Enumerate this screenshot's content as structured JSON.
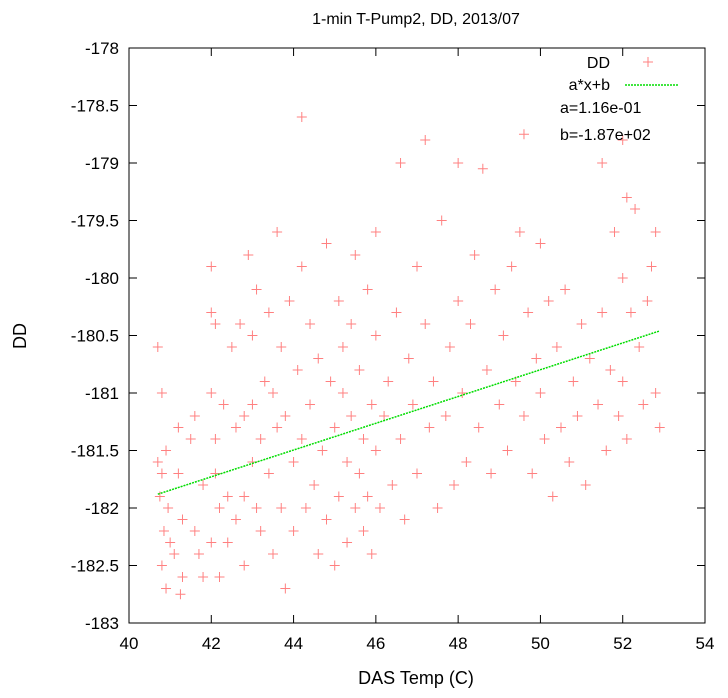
{
  "chart_data": {
    "type": "scatter",
    "title": "1-min T-Pump2, DD, 2013/07",
    "xlabel": "DAS Temp (C)",
    "ylabel": "DD",
    "xlim": [
      40,
      54
    ],
    "ylim": [
      -183,
      -178
    ],
    "xticks": [
      40,
      42,
      44,
      46,
      48,
      50,
      52,
      54
    ],
    "yticks": [
      -178,
      -178.5,
      -179,
      -179.5,
      -180,
      -180.5,
      -181,
      -181.5,
      -182,
      -182.5,
      -183
    ],
    "grid": false,
    "legend_position": "top-right",
    "series": [
      {
        "name": "DD",
        "kind": "points",
        "marker": "plus",
        "color": "#ff8080",
        "points": [
          [
            40.7,
            -180.6
          ],
          [
            40.8,
            -181.0
          ],
          [
            40.7,
            -181.6
          ],
          [
            40.8,
            -181.7
          ],
          [
            40.9,
            -181.5
          ],
          [
            40.75,
            -181.9
          ],
          [
            40.85,
            -182.2
          ],
          [
            40.8,
            -182.5
          ],
          [
            40.9,
            -182.7
          ],
          [
            41.0,
            -182.3
          ],
          [
            40.95,
            -182.0
          ],
          [
            41.1,
            -182.4
          ],
          [
            41.2,
            -181.3
          ],
          [
            41.2,
            -181.7
          ],
          [
            41.3,
            -182.1
          ],
          [
            41.3,
            -182.6
          ],
          [
            41.25,
            -182.75
          ],
          [
            41.5,
            -181.4
          ],
          [
            41.6,
            -181.2
          ],
          [
            41.6,
            -182.2
          ],
          [
            41.7,
            -182.4
          ],
          [
            41.8,
            -181.8
          ],
          [
            41.8,
            -182.6
          ],
          [
            42.0,
            -179.9
          ],
          [
            42.0,
            -180.3
          ],
          [
            42.1,
            -180.4
          ],
          [
            42.0,
            -181.0
          ],
          [
            42.1,
            -181.4
          ],
          [
            42.1,
            -181.7
          ],
          [
            42.0,
            -182.3
          ],
          [
            42.2,
            -182.0
          ],
          [
            42.2,
            -182.6
          ],
          [
            42.3,
            -181.1
          ],
          [
            42.4,
            -181.9
          ],
          [
            42.4,
            -182.3
          ],
          [
            42.5,
            -180.6
          ],
          [
            42.6,
            -181.3
          ],
          [
            42.6,
            -182.1
          ],
          [
            42.7,
            -180.4
          ],
          [
            42.8,
            -181.2
          ],
          [
            42.8,
            -181.9
          ],
          [
            42.8,
            -182.5
          ],
          [
            42.9,
            -179.8
          ],
          [
            43.0,
            -180.5
          ],
          [
            43.0,
            -181.1
          ],
          [
            43.0,
            -181.6
          ],
          [
            43.1,
            -182.0
          ],
          [
            43.1,
            -180.1
          ],
          [
            43.2,
            -181.4
          ],
          [
            43.2,
            -182.2
          ],
          [
            43.3,
            -180.9
          ],
          [
            43.4,
            -181.7
          ],
          [
            43.4,
            -180.3
          ],
          [
            43.5,
            -182.4
          ],
          [
            43.5,
            -181.0
          ],
          [
            43.6,
            -179.6
          ],
          [
            43.6,
            -181.3
          ],
          [
            43.7,
            -182.0
          ],
          [
            43.7,
            -180.6
          ],
          [
            43.8,
            -182.7
          ],
          [
            43.8,
            -181.2
          ],
          [
            43.9,
            -180.2
          ],
          [
            44.0,
            -181.6
          ],
          [
            44.0,
            -182.2
          ],
          [
            44.1,
            -180.8
          ],
          [
            44.2,
            -178.6
          ],
          [
            44.2,
            -179.9
          ],
          [
            44.2,
            -181.4
          ],
          [
            44.3,
            -182.0
          ],
          [
            44.4,
            -180.4
          ],
          [
            44.4,
            -181.1
          ],
          [
            44.5,
            -181.8
          ],
          [
            44.6,
            -182.4
          ],
          [
            44.6,
            -180.7
          ],
          [
            44.7,
            -181.5
          ],
          [
            44.8,
            -179.7
          ],
          [
            44.8,
            -182.1
          ],
          [
            44.9,
            -180.9
          ],
          [
            45.0,
            -181.3
          ],
          [
            45.0,
            -182.5
          ],
          [
            45.1,
            -180.2
          ],
          [
            45.1,
            -181.9
          ],
          [
            45.2,
            -180.6
          ],
          [
            45.2,
            -181.0
          ],
          [
            45.3,
            -182.3
          ],
          [
            45.3,
            -181.6
          ],
          [
            45.4,
            -180.4
          ],
          [
            45.4,
            -181.2
          ],
          [
            45.5,
            -182.0
          ],
          [
            45.5,
            -179.8
          ],
          [
            45.6,
            -181.7
          ],
          [
            45.6,
            -180.8
          ],
          [
            45.7,
            -182.2
          ],
          [
            45.7,
            -181.4
          ],
          [
            45.8,
            -180.1
          ],
          [
            45.8,
            -181.9
          ],
          [
            45.9,
            -181.1
          ],
          [
            45.9,
            -182.4
          ],
          [
            46.0,
            -179.6
          ],
          [
            46.0,
            -180.5
          ],
          [
            46.0,
            -181.5
          ],
          [
            46.1,
            -182.0
          ],
          [
            46.2,
            -181.2
          ],
          [
            46.3,
            -180.9
          ],
          [
            46.4,
            -181.8
          ],
          [
            46.5,
            -180.3
          ],
          [
            46.6,
            -179.0
          ],
          [
            46.6,
            -181.4
          ],
          [
            46.7,
            -182.1
          ],
          [
            46.8,
            -180.7
          ],
          [
            46.9,
            -181.1
          ],
          [
            47.0,
            -179.9
          ],
          [
            47.0,
            -181.7
          ],
          [
            47.2,
            -178.8
          ],
          [
            47.2,
            -180.4
          ],
          [
            47.3,
            -181.3
          ],
          [
            47.4,
            -180.9
          ],
          [
            47.5,
            -182.0
          ],
          [
            47.6,
            -179.5
          ],
          [
            47.7,
            -181.2
          ],
          [
            47.8,
            -180.6
          ],
          [
            47.9,
            -181.8
          ],
          [
            48.0,
            -179.0
          ],
          [
            48.0,
            -180.2
          ],
          [
            48.1,
            -181.0
          ],
          [
            48.2,
            -181.6
          ],
          [
            48.3,
            -180.4
          ],
          [
            48.4,
            -179.8
          ],
          [
            48.5,
            -181.3
          ],
          [
            48.6,
            -179.05
          ],
          [
            48.7,
            -180.8
          ],
          [
            48.8,
            -181.7
          ],
          [
            48.9,
            -180.1
          ],
          [
            49.0,
            -181.1
          ],
          [
            49.1,
            -180.5
          ],
          [
            49.2,
            -181.5
          ],
          [
            49.3,
            -179.9
          ],
          [
            49.4,
            -180.9
          ],
          [
            49.5,
            -179.6
          ],
          [
            49.6,
            -178.75
          ],
          [
            49.6,
            -181.2
          ],
          [
            49.7,
            -180.3
          ],
          [
            49.8,
            -181.7
          ],
          [
            49.9,
            -180.7
          ],
          [
            50.0,
            -179.7
          ],
          [
            50.0,
            -181.0
          ],
          [
            50.1,
            -181.4
          ],
          [
            50.2,
            -180.2
          ],
          [
            50.3,
            -181.9
          ],
          [
            50.4,
            -180.6
          ],
          [
            50.5,
            -181.3
          ],
          [
            50.6,
            -180.1
          ],
          [
            50.7,
            -181.6
          ],
          [
            50.8,
            -180.9
          ],
          [
            50.9,
            -181.2
          ],
          [
            51.0,
            -180.4
          ],
          [
            51.1,
            -181.8
          ],
          [
            51.2,
            -180.7
          ],
          [
            51.4,
            -181.1
          ],
          [
            51.5,
            -179.0
          ],
          [
            51.5,
            -180.3
          ],
          [
            51.6,
            -181.5
          ],
          [
            51.7,
            -180.8
          ],
          [
            51.8,
            -179.6
          ],
          [
            51.9,
            -181.2
          ],
          [
            52.0,
            -178.8
          ],
          [
            52.0,
            -180.0
          ],
          [
            52.0,
            -180.9
          ],
          [
            52.1,
            -179.3
          ],
          [
            52.1,
            -181.4
          ],
          [
            52.2,
            -180.3
          ],
          [
            52.3,
            -179.4
          ],
          [
            52.4,
            -180.6
          ],
          [
            52.5,
            -181.1
          ],
          [
            52.6,
            -180.2
          ],
          [
            52.7,
            -179.9
          ],
          [
            52.8,
            -179.6
          ],
          [
            52.8,
            -181.0
          ],
          [
            52.9,
            -181.3
          ]
        ]
      },
      {
        "name": "a*x+b",
        "kind": "line",
        "color": "#00dd00",
        "points": [
          [
            40.7,
            -181.88
          ],
          [
            52.9,
            -180.46
          ]
        ]
      }
    ],
    "annotations": [
      "a=1.16e-01",
      "b=-1.87e+02"
    ]
  }
}
